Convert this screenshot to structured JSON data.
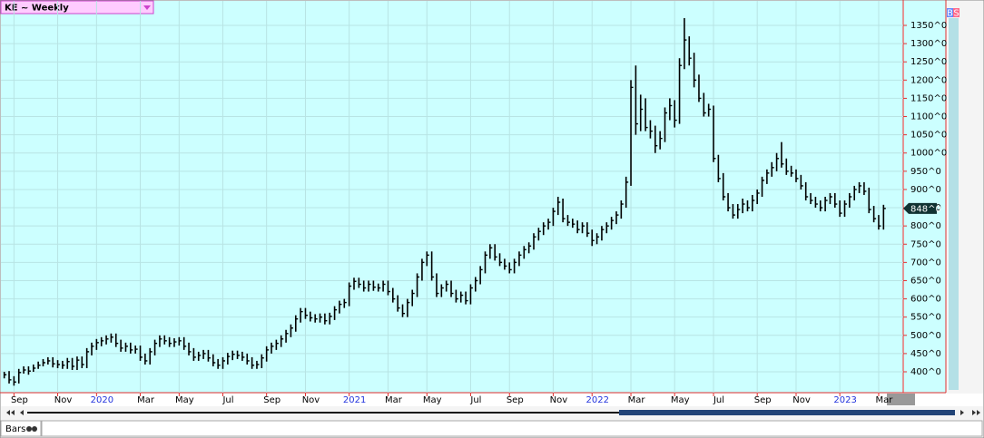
{
  "header": {
    "symbol": "KE ~ Weekly"
  },
  "footer": {
    "chart_style": "Bars"
  },
  "buttons": [
    "B",
    "S"
  ],
  "chart_data": {
    "type": "hlc",
    "color": "#000000",
    "high": [
      400,
      402,
      388,
      408,
      415,
      415,
      420,
      428,
      435,
      440,
      440,
      432,
      430,
      438,
      438,
      442,
      442,
      465,
      480,
      490,
      495,
      500,
      505,
      505,
      488,
      480,
      480,
      472,
      472,
      450,
      465,
      488,
      500,
      500,
      495,
      492,
      495,
      495,
      480,
      465,
      455,
      460,
      460,
      448,
      435,
      440,
      452,
      458,
      458,
      455,
      450,
      440,
      430,
      448,
      470,
      480,
      488,
      500,
      515,
      530,
      555,
      575,
      575,
      565,
      558,
      560,
      560,
      562,
      580,
      595,
      600,
      645,
      658,
      658,
      650,
      650,
      650,
      642,
      650,
      650,
      630,
      610,
      585,
      600,
      625,
      670,
      710,
      730,
      730,
      670,
      640,
      650,
      650,
      625,
      620,
      620,
      640,
      660,
      690,
      730,
      750,
      750,
      725,
      710,
      700,
      710,
      730,
      745,
      755,
      780,
      795,
      810,
      820,
      850,
      880,
      875,
      830,
      820,
      815,
      810,
      810,
      790,
      780,
      800,
      810,
      825,
      840,
      870,
      935,
      1200,
      1240,
      1160,
      1150,
      1090,
      1075,
      1060,
      1125,
      1150,
      1145,
      1260,
      1370,
      1320,
      1275,
      1215,
      1165,
      1135,
      1130,
      995,
      945,
      890,
      860,
      860,
      875,
      870,
      885,
      900,
      935,
      955,
      975,
      1000,
      1030,
      985,
      965,
      955,
      940,
      920,
      890,
      880,
      870,
      880,
      890,
      890,
      870,
      870,
      890,
      910,
      920,
      920,
      905,
      855,
      830,
      858
    ],
    "low": [
      382,
      368,
      362,
      368,
      395,
      392,
      400,
      408,
      415,
      420,
      412,
      410,
      408,
      408,
      405,
      405,
      410,
      410,
      445,
      460,
      470,
      475,
      480,
      468,
      455,
      455,
      450,
      450,
      430,
      420,
      420,
      445,
      468,
      475,
      468,
      468,
      472,
      460,
      445,
      430,
      430,
      435,
      428,
      415,
      408,
      408,
      420,
      432,
      435,
      430,
      420,
      408,
      408,
      410,
      428,
      450,
      460,
      468,
      480,
      495,
      510,
      535,
      545,
      538,
      535,
      535,
      530,
      530,
      542,
      560,
      575,
      580,
      625,
      630,
      620,
      620,
      622,
      620,
      620,
      610,
      590,
      565,
      550,
      550,
      580,
      605,
      650,
      690,
      650,
      605,
      605,
      620,
      605,
      590,
      590,
      585,
      585,
      620,
      640,
      670,
      710,
      705,
      690,
      680,
      670,
      670,
      690,
      710,
      725,
      735,
      760,
      775,
      790,
      800,
      830,
      810,
      800,
      795,
      780,
      780,
      770,
      745,
      750,
      760,
      780,
      790,
      805,
      820,
      850,
      910,
      1050,
      1060,
      1060,
      1040,
      1000,
      1010,
      1030,
      1090,
      1070,
      1080,
      1230,
      1240,
      1180,
      1140,
      1100,
      1100,
      975,
      920,
      870,
      840,
      820,
      820,
      835,
      840,
      840,
      860,
      880,
      915,
      935,
      950,
      960,
      940,
      935,
      920,
      900,
      870,
      860,
      850,
      840,
      840,
      860,
      850,
      825,
      825,
      850,
      870,
      890,
      885,
      835,
      810,
      790,
      790
    ],
    "close": [
      392,
      378,
      372,
      398,
      405,
      402,
      410,
      418,
      425,
      430,
      422,
      420,
      418,
      428,
      415,
      432,
      420,
      455,
      470,
      480,
      485,
      490,
      495,
      478,
      465,
      470,
      460,
      462,
      440,
      430,
      455,
      478,
      490,
      485,
      478,
      482,
      485,
      470,
      455,
      440,
      445,
      450,
      438,
      425,
      418,
      430,
      442,
      448,
      445,
      440,
      430,
      418,
      420,
      438,
      460,
      470,
      478,
      490,
      505,
      520,
      545,
      565,
      555,
      548,
      545,
      550,
      540,
      552,
      570,
      585,
      590,
      635,
      648,
      640,
      630,
      640,
      632,
      630,
      640,
      620,
      600,
      575,
      560,
      590,
      615,
      660,
      700,
      720,
      660,
      615,
      630,
      640,
      615,
      600,
      610,
      595,
      630,
      650,
      680,
      720,
      740,
      715,
      700,
      690,
      680,
      700,
      720,
      735,
      745,
      770,
      785,
      800,
      810,
      840,
      865,
      820,
      810,
      805,
      790,
      800,
      780,
      760,
      770,
      790,
      800,
      815,
      830,
      860,
      920,
      1180,
      1080,
      1120,
      1070,
      1060,
      1020,
      1040,
      1110,
      1130,
      1090,
      1240,
      1310,
      1260,
      1200,
      1150,
      1110,
      1120,
      985,
      930,
      880,
      850,
      830,
      845,
      860,
      850,
      870,
      890,
      925,
      945,
      960,
      985,
      970,
      950,
      945,
      930,
      910,
      880,
      870,
      860,
      850,
      870,
      880,
      860,
      835,
      860,
      880,
      900,
      910,
      895,
      845,
      820,
      800,
      848
    ],
    "last_label": "848^0",
    "xlim": [
      -0.5,
      181.5
    ],
    "xticks": [
      {
        "value": 2,
        "label": "Sep"
      },
      {
        "value": 11,
        "label": "Nov"
      },
      {
        "value": 19,
        "label": "2020"
      },
      {
        "value": 28,
        "label": "Mar"
      },
      {
        "value": 36,
        "label": "May"
      },
      {
        "value": 45,
        "label": "Jul"
      },
      {
        "value": 54,
        "label": "Sep"
      },
      {
        "value": 62,
        "label": "Nov"
      },
      {
        "value": 71,
        "label": "2021"
      },
      {
        "value": 79,
        "label": "Mar"
      },
      {
        "value": 87,
        "label": "May"
      },
      {
        "value": 96,
        "label": "Jul"
      },
      {
        "value": 104,
        "label": "Sep"
      },
      {
        "value": 113,
        "label": "Nov"
      },
      {
        "value": 121,
        "label": "2022"
      },
      {
        "value": 129,
        "label": "Mar"
      },
      {
        "value": 138,
        "label": "May"
      },
      {
        "value": 146,
        "label": "Jul"
      },
      {
        "value": 155,
        "label": "Sep"
      },
      {
        "value": 163,
        "label": "Nov"
      },
      {
        "value": 172,
        "label": "2023"
      },
      {
        "value": 180,
        "label": "Mar"
      }
    ],
    "ylim": [
      330,
      1380
    ],
    "yticks": [
      {
        "value": 400,
        "label": "400^0"
      },
      {
        "value": 450,
        "label": "450^0"
      },
      {
        "value": 500,
        "label": "500^0"
      },
      {
        "value": 550,
        "label": "550^0"
      },
      {
        "value": 600,
        "label": "600^0"
      },
      {
        "value": 650,
        "label": "650^0"
      },
      {
        "value": 700,
        "label": "700^0"
      },
      {
        "value": 750,
        "label": "750^0"
      },
      {
        "value": 800,
        "label": "800^0"
      },
      {
        "value": 850,
        "label": "850^0"
      },
      {
        "value": 900,
        "label": "900^0"
      },
      {
        "value": 950,
        "label": "950^0"
      },
      {
        "value": 1000,
        "label": "1000^0"
      },
      {
        "value": 1050,
        "label": "1050^0"
      },
      {
        "value": 1100,
        "label": "1100^0"
      },
      {
        "value": 1150,
        "label": "1150^0"
      },
      {
        "value": 1200,
        "label": "1200^0"
      },
      {
        "value": 1250,
        "label": "1250^0"
      },
      {
        "value": 1300,
        "label": "1300^0"
      },
      {
        "value": 1350,
        "label": "1350^0"
      }
    ],
    "grid": true
  }
}
